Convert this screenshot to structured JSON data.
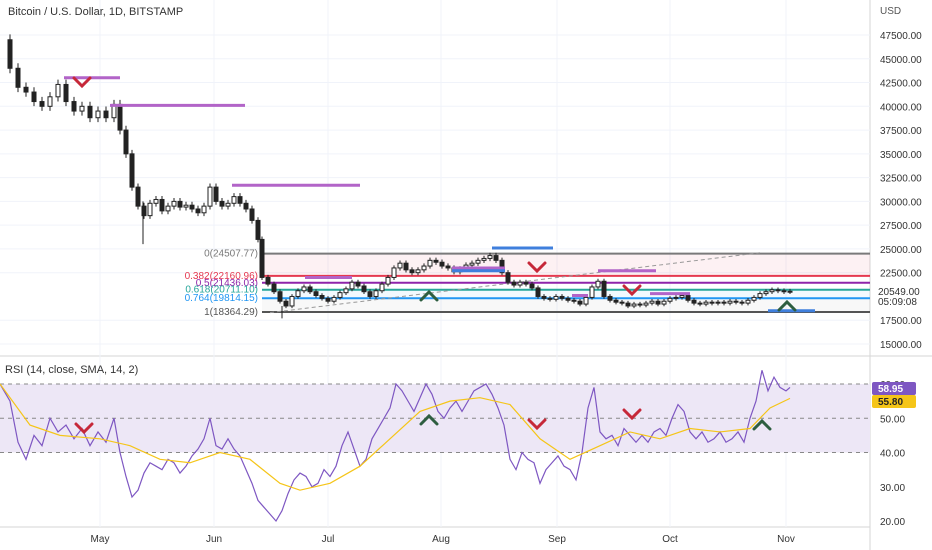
{
  "header": {
    "title": "Bitcoin / U.S. Dollar, 1D, BITSTAMP"
  },
  "price_axis": {
    "currency": "USD",
    "ticks": [
      "47500.00",
      "45000.00",
      "42500.00",
      "40000.00",
      "37500.00",
      "35000.00",
      "32500.00",
      "30000.00",
      "27500.00",
      "25000.00",
      "22500.00",
      "17500.00",
      "15000.00"
    ],
    "last_price_label": "20549.00",
    "countdown_label": "05:09:08"
  },
  "fib": {
    "levels": [
      {
        "ratio": 0,
        "label": "0(24507.77)",
        "price": 24507.77,
        "color": "#7a7a7a"
      },
      {
        "ratio": 0.382,
        "label": "0.382(22160.96)",
        "price": 22160.96,
        "color": "#e53950"
      },
      {
        "ratio": 0.5,
        "label": "0.5(21436.03)",
        "price": 21436.03,
        "color": "#8e24aa"
      },
      {
        "ratio": 0.618,
        "label": "0.618(20711.10)",
        "price": 20711.1,
        "color": "#26a69a"
      },
      {
        "ratio": 0.764,
        "label": "0.764(19814.15)",
        "price": 19814.15,
        "color": "#2196f3"
      },
      {
        "ratio": 1,
        "label": "1(18364.29)",
        "price": 18364.29,
        "color": "#555555"
      }
    ]
  },
  "rsi": {
    "title": "RSI (14, close, SMA, 14, 2)",
    "ticks": [
      "60.00",
      "50.00",
      "40.00",
      "30.00",
      "20.00"
    ],
    "value_label": "58.95",
    "ma_label": "55.80",
    "colors": {
      "rsi": "#7e57c2",
      "ma": "#f5c518",
      "band": "#ede7f6",
      "value_bg": "#7e57c2",
      "ma_bg": "#f5c518"
    }
  },
  "time_axis": {
    "labels": [
      "May",
      "Jun",
      "Jul",
      "Aug",
      "Sep",
      "Oct",
      "Nov"
    ]
  },
  "colors": {
    "up": "#222222",
    "down": "#222222",
    "resistance": "#b264c8",
    "support": "#3f7fdc",
    "sell_marker": "#c62839",
    "buy_marker": "#2e5e40"
  }
}
